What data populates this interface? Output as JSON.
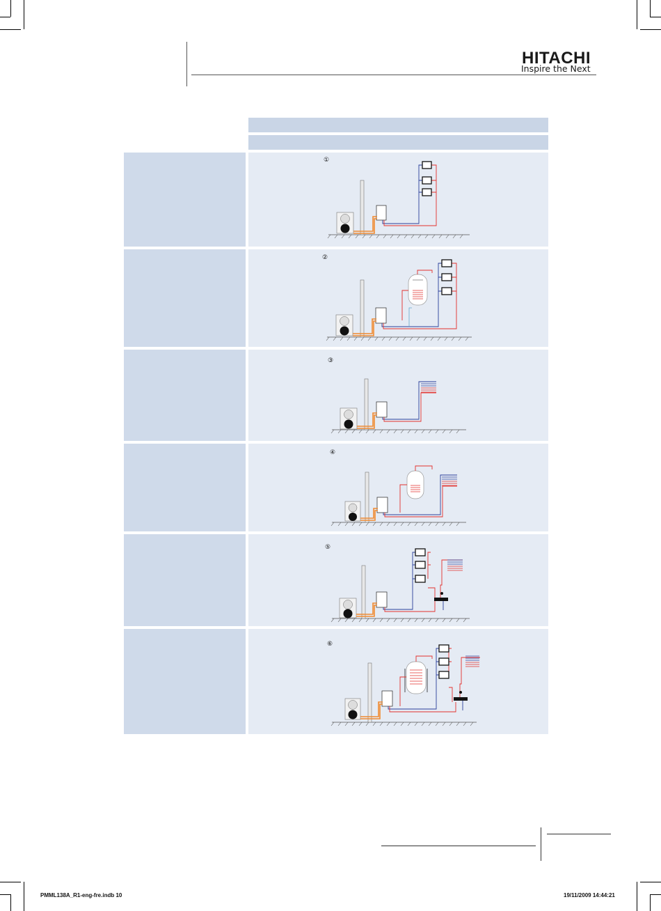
{
  "brand": {
    "name": "HITACHI",
    "tagline": "Inspire the Next"
  },
  "diagrams": [
    {
      "number": "①",
      "variant": "radiators"
    },
    {
      "number": "②",
      "variant": "tank-radiators"
    },
    {
      "number": "③",
      "variant": "floor"
    },
    {
      "number": "④",
      "variant": "tank-floor"
    },
    {
      "number": "⑤",
      "variant": "radiators-floor"
    },
    {
      "number": "⑥",
      "variant": "tank-radiators-floor"
    }
  ],
  "footer": {
    "file": "PMML138A_R1-eng-fre.indb   10",
    "timestamp": "19/11/2009   14:44:21"
  },
  "colors": {
    "panel_dark": "#cfdaea",
    "panel_light": "#e5ebf4",
    "band": "#c9d5e6",
    "pipe_red": "#e3302c",
    "pipe_blue": "#2a3f9a",
    "pipe_orange": "#f08a30"
  }
}
